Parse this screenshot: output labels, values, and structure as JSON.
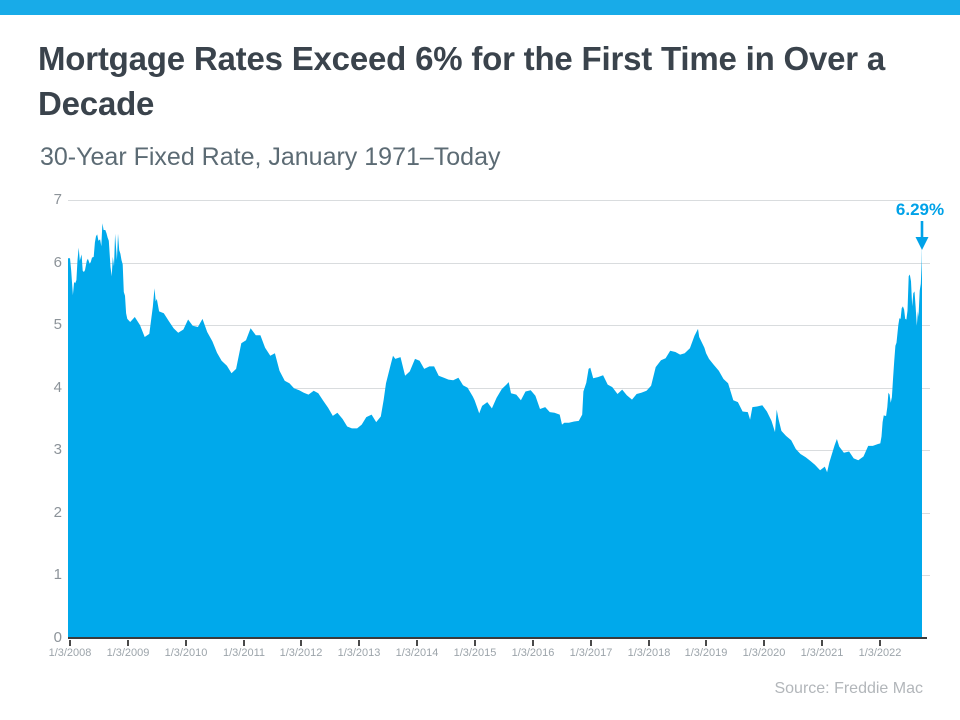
{
  "page": {
    "accent_bar_color": "#18ABE8",
    "background": "#ffffff"
  },
  "header": {
    "title": "Mortgage Rates Exceed 6% for the First Time in Over a Decade",
    "subtitle": "30-Year Fixed Rate, January 1971–Today"
  },
  "chart_data": {
    "type": "area",
    "title": "Mortgage Rates Exceed 6% for the First Time in Over a Decade",
    "subtitle": "30-Year Fixed Rate, January 1971–Today",
    "fill_color": "#00A9EB",
    "grid": true,
    "ylim": [
      0,
      7
    ],
    "y_ticks": [
      0,
      1,
      2,
      3,
      4,
      5,
      6,
      7
    ],
    "x_tick_labels": [
      "1/3/2008",
      "1/3/2009",
      "1/3/2010",
      "1/3/2011",
      "1/3/2012",
      "1/3/2013",
      "1/3/2014",
      "1/3/2015",
      "1/3/2016",
      "1/3/2017",
      "1/3/2018",
      "1/3/2019",
      "1/3/2020",
      "1/3/2021",
      "1/3/2022"
    ],
    "x_years_span": 14.72,
    "annotation": {
      "label": "6.29%",
      "value": 6.29,
      "color": "#00A2E8"
    },
    "source": "Source: Freddie Mac",
    "points": [
      [
        0.0,
        6.07
      ],
      [
        0.02,
        5.87
      ],
      [
        0.05,
        5.48
      ],
      [
        0.07,
        5.69
      ],
      [
        0.09,
        5.67
      ],
      [
        0.11,
        5.72
      ],
      [
        0.13,
        6.04
      ],
      [
        0.15,
        6.24
      ],
      [
        0.17,
        6.03
      ],
      [
        0.2,
        6.13
      ],
      [
        0.22,
        5.87
      ],
      [
        0.24,
        5.85
      ],
      [
        0.26,
        5.88
      ],
      [
        0.29,
        6.03
      ],
      [
        0.31,
        6.06
      ],
      [
        0.34,
        5.98
      ],
      [
        0.36,
        6.01
      ],
      [
        0.38,
        6.08
      ],
      [
        0.41,
        6.09
      ],
      [
        0.43,
        6.32
      ],
      [
        0.45,
        6.42
      ],
      [
        0.47,
        6.45
      ],
      [
        0.49,
        6.35
      ],
      [
        0.52,
        6.37
      ],
      [
        0.54,
        6.26
      ],
      [
        0.56,
        6.63
      ],
      [
        0.58,
        6.52
      ],
      [
        0.61,
        6.52
      ],
      [
        0.63,
        6.47
      ],
      [
        0.65,
        6.4
      ],
      [
        0.67,
        6.35
      ],
      [
        0.7,
        5.93
      ],
      [
        0.72,
        5.78
      ],
      [
        0.74,
        6.09
      ],
      [
        0.76,
        5.94
      ],
      [
        0.78,
        6.46
      ],
      [
        0.81,
        6.04
      ],
      [
        0.83,
        6.46
      ],
      [
        0.85,
        6.2
      ],
      [
        0.87,
        6.14
      ],
      [
        0.89,
        6.04
      ],
      [
        0.91,
        5.97
      ],
      [
        0.93,
        5.53
      ],
      [
        0.95,
        5.47
      ],
      [
        0.97,
        5.19
      ],
      [
        0.99,
        5.1
      ],
      [
        1.04,
        5.05
      ],
      [
        1.12,
        5.13
      ],
      [
        1.21,
        5.0
      ],
      [
        1.29,
        4.81
      ],
      [
        1.37,
        4.86
      ],
      [
        1.43,
        5.29
      ],
      [
        1.46,
        5.59
      ],
      [
        1.48,
        5.38
      ],
      [
        1.5,
        5.42
      ],
      [
        1.54,
        5.22
      ],
      [
        1.62,
        5.19
      ],
      [
        1.71,
        5.06
      ],
      [
        1.79,
        4.95
      ],
      [
        1.87,
        4.88
      ],
      [
        1.96,
        4.93
      ],
      [
        2.04,
        5.09
      ],
      [
        2.12,
        4.99
      ],
      [
        2.21,
        4.97
      ],
      [
        2.29,
        5.1
      ],
      [
        2.37,
        4.89
      ],
      [
        2.46,
        4.74
      ],
      [
        2.54,
        4.56
      ],
      [
        2.62,
        4.43
      ],
      [
        2.71,
        4.35
      ],
      [
        2.79,
        4.23
      ],
      [
        2.87,
        4.3
      ],
      [
        2.96,
        4.71
      ],
      [
        3.04,
        4.76
      ],
      [
        3.12,
        4.95
      ],
      [
        3.21,
        4.84
      ],
      [
        3.29,
        4.84
      ],
      [
        3.37,
        4.64
      ],
      [
        3.46,
        4.51
      ],
      [
        3.54,
        4.55
      ],
      [
        3.62,
        4.27
      ],
      [
        3.71,
        4.11
      ],
      [
        3.79,
        4.07
      ],
      [
        3.87,
        3.99
      ],
      [
        3.96,
        3.96
      ],
      [
        4.04,
        3.92
      ],
      [
        4.12,
        3.89
      ],
      [
        4.21,
        3.95
      ],
      [
        4.29,
        3.91
      ],
      [
        4.37,
        3.8
      ],
      [
        4.46,
        3.68
      ],
      [
        4.54,
        3.55
      ],
      [
        4.62,
        3.6
      ],
      [
        4.71,
        3.5
      ],
      [
        4.79,
        3.38
      ],
      [
        4.87,
        3.35
      ],
      [
        4.96,
        3.35
      ],
      [
        5.04,
        3.41
      ],
      [
        5.12,
        3.53
      ],
      [
        5.21,
        3.57
      ],
      [
        5.29,
        3.45
      ],
      [
        5.37,
        3.54
      ],
      [
        5.42,
        3.81
      ],
      [
        5.46,
        4.07
      ],
      [
        5.54,
        4.37
      ],
      [
        5.58,
        4.51
      ],
      [
        5.62,
        4.46
      ],
      [
        5.71,
        4.49
      ],
      [
        5.79,
        4.19
      ],
      [
        5.87,
        4.26
      ],
      [
        5.96,
        4.46
      ],
      [
        6.04,
        4.43
      ],
      [
        6.12,
        4.3
      ],
      [
        6.21,
        4.34
      ],
      [
        6.29,
        4.34
      ],
      [
        6.37,
        4.19
      ],
      [
        6.46,
        4.16
      ],
      [
        6.54,
        4.13
      ],
      [
        6.62,
        4.12
      ],
      [
        6.71,
        4.16
      ],
      [
        6.79,
        4.04
      ],
      [
        6.87,
        4.0
      ],
      [
        6.96,
        3.86
      ],
      [
        6.99,
        3.8
      ],
      [
        7.04,
        3.67
      ],
      [
        7.07,
        3.59
      ],
      [
        7.12,
        3.71
      ],
      [
        7.21,
        3.77
      ],
      [
        7.29,
        3.67
      ],
      [
        7.37,
        3.84
      ],
      [
        7.46,
        3.98
      ],
      [
        7.54,
        4.05
      ],
      [
        7.58,
        4.09
      ],
      [
        7.62,
        3.91
      ],
      [
        7.71,
        3.89
      ],
      [
        7.79,
        3.8
      ],
      [
        7.87,
        3.94
      ],
      [
        7.96,
        3.96
      ],
      [
        8.04,
        3.87
      ],
      [
        8.12,
        3.66
      ],
      [
        8.21,
        3.69
      ],
      [
        8.29,
        3.61
      ],
      [
        8.37,
        3.6
      ],
      [
        8.46,
        3.57
      ],
      [
        8.5,
        3.41
      ],
      [
        8.54,
        3.44
      ],
      [
        8.62,
        3.44
      ],
      [
        8.71,
        3.46
      ],
      [
        8.79,
        3.47
      ],
      [
        8.85,
        3.57
      ],
      [
        8.87,
        3.94
      ],
      [
        8.92,
        4.08
      ],
      [
        8.96,
        4.3
      ],
      [
        8.99,
        4.32
      ],
      [
        9.04,
        4.15
      ],
      [
        9.12,
        4.17
      ],
      [
        9.21,
        4.2
      ],
      [
        9.29,
        4.05
      ],
      [
        9.37,
        4.01
      ],
      [
        9.46,
        3.9
      ],
      [
        9.54,
        3.97
      ],
      [
        9.62,
        3.88
      ],
      [
        9.71,
        3.81
      ],
      [
        9.79,
        3.9
      ],
      [
        9.87,
        3.92
      ],
      [
        9.96,
        3.95
      ],
      [
        10.04,
        4.03
      ],
      [
        10.12,
        4.33
      ],
      [
        10.21,
        4.44
      ],
      [
        10.29,
        4.47
      ],
      [
        10.37,
        4.59
      ],
      [
        10.46,
        4.57
      ],
      [
        10.54,
        4.53
      ],
      [
        10.62,
        4.55
      ],
      [
        10.71,
        4.63
      ],
      [
        10.79,
        4.83
      ],
      [
        10.85,
        4.94
      ],
      [
        10.87,
        4.81
      ],
      [
        10.96,
        4.64
      ],
      [
        10.99,
        4.55
      ],
      [
        11.04,
        4.46
      ],
      [
        11.12,
        4.37
      ],
      [
        11.21,
        4.27
      ],
      [
        11.29,
        4.14
      ],
      [
        11.37,
        4.07
      ],
      [
        11.46,
        3.8
      ],
      [
        11.54,
        3.77
      ],
      [
        11.62,
        3.62
      ],
      [
        11.71,
        3.61
      ],
      [
        11.75,
        3.49
      ],
      [
        11.79,
        3.69
      ],
      [
        11.87,
        3.7
      ],
      [
        11.96,
        3.72
      ],
      [
        12.04,
        3.62
      ],
      [
        12.12,
        3.47
      ],
      [
        12.18,
        3.29
      ],
      [
        12.21,
        3.65
      ],
      [
        12.24,
        3.5
      ],
      [
        12.29,
        3.31
      ],
      [
        12.37,
        3.23
      ],
      [
        12.46,
        3.16
      ],
      [
        12.54,
        3.02
      ],
      [
        12.62,
        2.94
      ],
      [
        12.71,
        2.89
      ],
      [
        12.79,
        2.83
      ],
      [
        12.87,
        2.77
      ],
      [
        12.96,
        2.68
      ],
      [
        13.04,
        2.74
      ],
      [
        13.08,
        2.65
      ],
      [
        13.12,
        2.81
      ],
      [
        13.21,
        3.08
      ],
      [
        13.25,
        3.18
      ],
      [
        13.29,
        3.06
      ],
      [
        13.37,
        2.96
      ],
      [
        13.46,
        2.98
      ],
      [
        13.54,
        2.87
      ],
      [
        13.62,
        2.84
      ],
      [
        13.71,
        2.9
      ],
      [
        13.79,
        3.07
      ],
      [
        13.87,
        3.07
      ],
      [
        13.96,
        3.1
      ],
      [
        14.0,
        3.11
      ],
      [
        14.02,
        3.22
      ],
      [
        14.04,
        3.45
      ],
      [
        14.06,
        3.56
      ],
      [
        14.08,
        3.55
      ],
      [
        14.1,
        3.55
      ],
      [
        14.12,
        3.69
      ],
      [
        14.14,
        3.92
      ],
      [
        14.16,
        3.89
      ],
      [
        14.18,
        3.76
      ],
      [
        14.2,
        3.85
      ],
      [
        14.22,
        4.16
      ],
      [
        14.24,
        4.42
      ],
      [
        14.26,
        4.67
      ],
      [
        14.28,
        4.72
      ],
      [
        14.31,
        5.0
      ],
      [
        14.33,
        5.11
      ],
      [
        14.35,
        5.1
      ],
      [
        14.37,
        5.27
      ],
      [
        14.39,
        5.3
      ],
      [
        14.41,
        5.25
      ],
      [
        14.43,
        5.1
      ],
      [
        14.45,
        5.09
      ],
      [
        14.47,
        5.23
      ],
      [
        14.49,
        5.78
      ],
      [
        14.51,
        5.81
      ],
      [
        14.53,
        5.7
      ],
      [
        14.55,
        5.3
      ],
      [
        14.57,
        5.51
      ],
      [
        14.59,
        5.54
      ],
      [
        14.61,
        5.3
      ],
      [
        14.63,
        4.99
      ],
      [
        14.65,
        5.22
      ],
      [
        14.66,
        5.13
      ],
      [
        14.68,
        5.55
      ],
      [
        14.7,
        5.66
      ],
      [
        14.71,
        5.89
      ],
      [
        14.715,
        6.02
      ],
      [
        14.72,
        6.29
      ]
    ]
  }
}
